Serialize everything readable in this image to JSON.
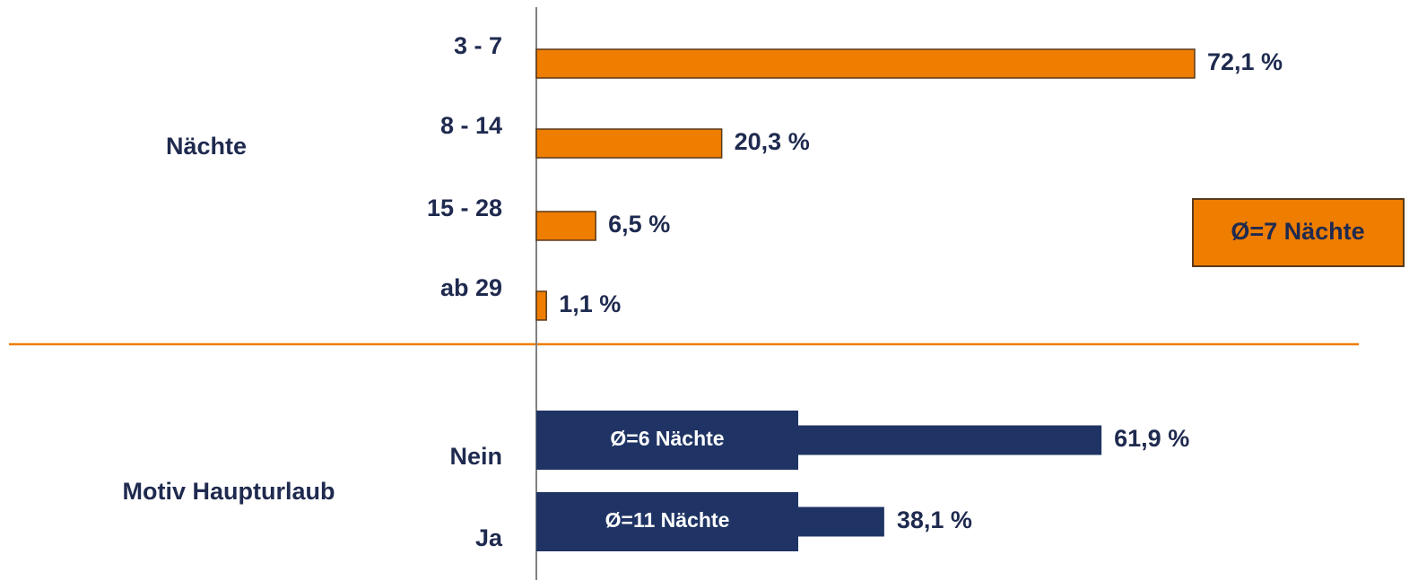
{
  "chart_data": [
    {
      "type": "bar",
      "orientation": "horizontal",
      "group_label": "Nächte",
      "categories": [
        "3 - 7",
        "8 - 14",
        "15 - 28",
        "ab 29"
      ],
      "values": [
        72.1,
        20.3,
        6.5,
        1.1
      ],
      "value_labels": [
        "72,1 %",
        "20,3 %",
        "6,5 %",
        "1,1 %"
      ],
      "color": "#ee7d00",
      "annotation": "Ø=7 Nächte"
    },
    {
      "type": "bar",
      "orientation": "horizontal",
      "group_label": "Motiv Haupturlaub",
      "categories": [
        "Nein",
        "Ja"
      ],
      "values": [
        61.9,
        38.1
      ],
      "value_labels": [
        "61,9 %",
        "38,1 %"
      ],
      "color": "#1f3464",
      "bar_annotations": [
        "Ø=6 Nächte",
        "Ø=11 Nächte"
      ]
    }
  ]
}
